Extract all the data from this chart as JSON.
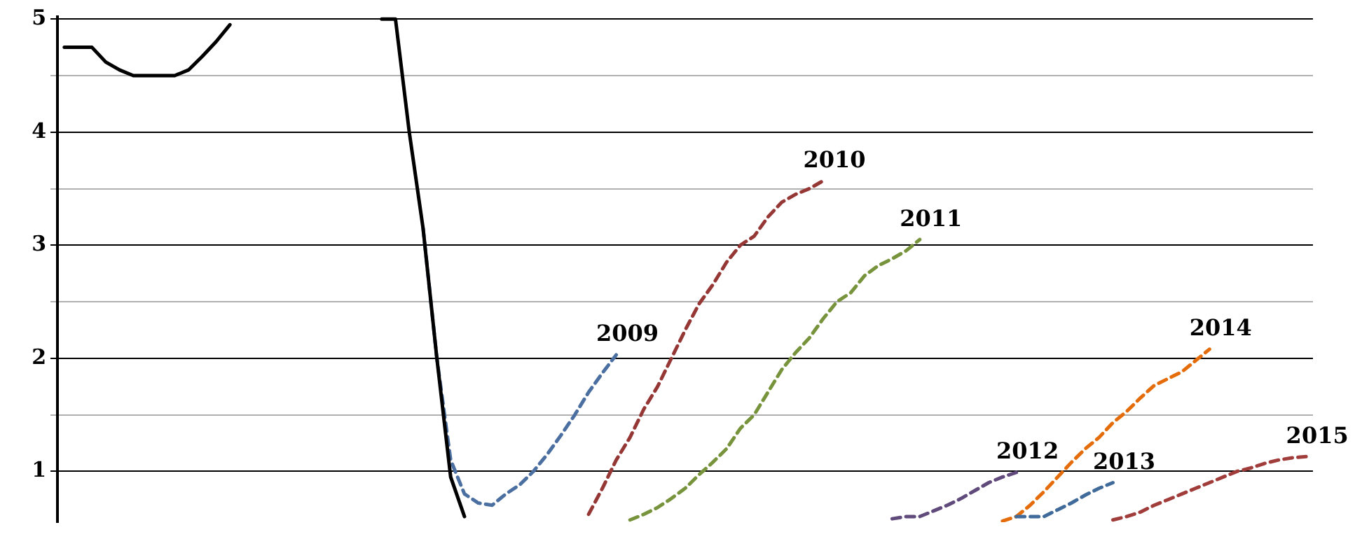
{
  "chart_data": {
    "type": "line",
    "categories": [
      null,
      null,
      null,
      null,
      null,
      null,
      null,
      null,
      null,
      null,
      null,
      null,
      null,
      null,
      null,
      null,
      null,
      null,
      null,
      null,
      null,
      null,
      null,
      null,
      null,
      null,
      null,
      null,
      null,
      null,
      null,
      null,
      null,
      null,
      null,
      null,
      null,
      null,
      null,
      null,
      null,
      null,
      null,
      null,
      null,
      null,
      null,
      null,
      null,
      null,
      null,
      null,
      null,
      null,
      null,
      null,
      null,
      null,
      null,
      null,
      null,
      null,
      null,
      null,
      null,
      null,
      null,
      null,
      null,
      null,
      null,
      null,
      null,
      null,
      null,
      null,
      null,
      null,
      null,
      null,
      null,
      null,
      null,
      null,
      null,
      null,
      null,
      null,
      null,
      null,
      null
    ],
    "series": [
      {
        "color": "#000000",
        "line_style": "solid",
        "values": [
          4.75,
          4.75,
          4.75,
          4.62,
          4.55,
          4.5,
          4.5,
          4.5,
          4.5,
          4.55,
          4.67,
          4.8,
          4.95,
          null,
          null,
          null,
          null,
          null,
          null,
          null,
          null,
          null,
          null,
          5.0,
          5.0,
          4.0,
          3.15,
          2.0,
          0.95,
          0.6,
          null,
          null,
          null,
          null,
          null,
          null,
          null,
          null,
          null,
          null,
          null,
          null,
          null,
          null,
          null,
          null,
          null,
          null,
          null,
          null,
          null,
          null,
          null,
          null,
          null,
          null,
          null,
          null,
          null,
          null,
          null,
          null,
          null,
          null,
          null,
          null,
          null,
          null,
          null,
          null,
          null,
          null,
          null,
          null,
          null,
          null,
          null,
          null,
          null,
          null,
          null,
          null,
          null,
          null,
          null,
          null,
          null,
          null,
          null,
          null,
          null
        ]
      },
      {
        "name": "2009",
        "color": "#4a6fa0",
        "line_style": "dashed",
        "values": [
          null,
          null,
          null,
          null,
          null,
          null,
          null,
          null,
          null,
          null,
          null,
          null,
          null,
          null,
          null,
          null,
          null,
          null,
          null,
          null,
          null,
          null,
          null,
          null,
          null,
          null,
          3.15,
          2.0,
          1.1,
          0.8,
          0.72,
          0.7,
          0.8,
          0.88,
          1.0,
          1.15,
          1.32,
          1.5,
          1.7,
          1.87,
          2.03,
          null,
          null,
          null,
          null,
          null,
          null,
          null,
          null,
          null,
          null,
          null,
          null,
          null,
          null,
          null,
          null,
          null,
          null,
          null,
          null,
          null,
          null,
          null,
          null,
          null,
          null,
          null,
          null,
          null,
          null,
          null,
          null,
          null,
          null,
          null,
          null,
          null,
          null,
          null,
          null,
          null,
          null,
          null,
          null,
          null,
          null,
          null,
          null,
          null,
          null
        ]
      },
      {
        "name": "2010",
        "color": "#953735",
        "line_style": "dashed",
        "values": [
          null,
          null,
          null,
          null,
          null,
          null,
          null,
          null,
          null,
          null,
          null,
          null,
          null,
          null,
          null,
          null,
          null,
          null,
          null,
          null,
          null,
          null,
          null,
          null,
          null,
          null,
          null,
          null,
          null,
          null,
          null,
          null,
          null,
          null,
          null,
          null,
          null,
          null,
          0.62,
          0.85,
          1.1,
          1.3,
          1.55,
          1.75,
          2.0,
          2.25,
          2.48,
          2.65,
          2.85,
          3.0,
          3.08,
          3.25,
          3.38,
          3.45,
          3.5,
          3.57,
          null,
          null,
          null,
          null,
          null,
          null,
          null,
          null,
          null,
          null,
          null,
          null,
          null,
          null,
          null,
          null,
          null,
          null,
          null,
          null,
          null,
          null,
          null,
          null,
          null,
          null,
          null,
          null,
          null,
          null,
          null,
          null,
          null,
          null,
          null
        ]
      },
      {
        "name": "2011",
        "color": "#77933c",
        "line_style": "dashed",
        "values": [
          null,
          null,
          null,
          null,
          null,
          null,
          null,
          null,
          null,
          null,
          null,
          null,
          null,
          null,
          null,
          null,
          null,
          null,
          null,
          null,
          null,
          null,
          null,
          null,
          null,
          null,
          null,
          null,
          null,
          null,
          null,
          null,
          null,
          null,
          null,
          null,
          null,
          null,
          null,
          null,
          null,
          0.57,
          0.62,
          0.68,
          0.76,
          0.85,
          0.97,
          1.08,
          1.2,
          1.38,
          1.5,
          1.7,
          1.9,
          2.05,
          2.18,
          2.35,
          2.5,
          2.58,
          2.73,
          2.82,
          2.88,
          2.95,
          3.05,
          null,
          null,
          null,
          null,
          null,
          null,
          null,
          null,
          null,
          null,
          null,
          null,
          null,
          null,
          null,
          null,
          null,
          null,
          null,
          null,
          null,
          null,
          null,
          null,
          null,
          null,
          null,
          null
        ]
      },
      {
        "name": "2012",
        "color": "#604a7b",
        "line_style": "dashed",
        "values": [
          null,
          null,
          null,
          null,
          null,
          null,
          null,
          null,
          null,
          null,
          null,
          null,
          null,
          null,
          null,
          null,
          null,
          null,
          null,
          null,
          null,
          null,
          null,
          null,
          null,
          null,
          null,
          null,
          null,
          null,
          null,
          null,
          null,
          null,
          null,
          null,
          null,
          null,
          null,
          null,
          null,
          null,
          null,
          null,
          null,
          null,
          null,
          null,
          null,
          null,
          null,
          null,
          null,
          null,
          null,
          null,
          null,
          null,
          null,
          null,
          0.58,
          0.6,
          0.6,
          0.65,
          0.7,
          0.76,
          0.83,
          0.9,
          0.95,
          0.99,
          null,
          null,
          null,
          null,
          null,
          null,
          null,
          null,
          null,
          null,
          null,
          null,
          null,
          null,
          null,
          null,
          null,
          null,
          null,
          null,
          null
        ]
      },
      {
        "name": "2013",
        "color": "#3f6a9a",
        "line_style": "dashed",
        "values": [
          null,
          null,
          null,
          null,
          null,
          null,
          null,
          null,
          null,
          null,
          null,
          null,
          null,
          null,
          null,
          null,
          null,
          null,
          null,
          null,
          null,
          null,
          null,
          null,
          null,
          null,
          null,
          null,
          null,
          null,
          null,
          null,
          null,
          null,
          null,
          null,
          null,
          null,
          null,
          null,
          null,
          null,
          null,
          null,
          null,
          null,
          null,
          null,
          null,
          null,
          null,
          null,
          null,
          null,
          null,
          null,
          null,
          null,
          null,
          null,
          null,
          null,
          null,
          null,
          null,
          null,
          null,
          null,
          null,
          0.6,
          0.6,
          0.6,
          0.66,
          0.72,
          0.79,
          0.85,
          0.9,
          null,
          null,
          null,
          null,
          null,
          null,
          null,
          null,
          null,
          null,
          null,
          null,
          null,
          null
        ]
      },
      {
        "name": "2014",
        "color": "#e46c0a",
        "line_style": "dashed",
        "values": [
          null,
          null,
          null,
          null,
          null,
          null,
          null,
          null,
          null,
          null,
          null,
          null,
          null,
          null,
          null,
          null,
          null,
          null,
          null,
          null,
          null,
          null,
          null,
          null,
          null,
          null,
          null,
          null,
          null,
          null,
          null,
          null,
          null,
          null,
          null,
          null,
          null,
          null,
          null,
          null,
          null,
          null,
          null,
          null,
          null,
          null,
          null,
          null,
          null,
          null,
          null,
          null,
          null,
          null,
          null,
          null,
          null,
          null,
          null,
          null,
          null,
          null,
          null,
          null,
          null,
          null,
          null,
          null,
          0.56,
          0.6,
          0.7,
          0.82,
          0.95,
          1.08,
          1.2,
          1.3,
          1.43,
          1.53,
          1.65,
          1.76,
          1.82,
          1.88,
          1.98,
          2.08,
          null,
          null,
          null,
          null,
          null,
          null,
          null
        ]
      },
      {
        "name": "2015",
        "color": "#a03c3a",
        "line_style": "dashed",
        "values": [
          null,
          null,
          null,
          null,
          null,
          null,
          null,
          null,
          null,
          null,
          null,
          null,
          null,
          null,
          null,
          null,
          null,
          null,
          null,
          null,
          null,
          null,
          null,
          null,
          null,
          null,
          null,
          null,
          null,
          null,
          null,
          null,
          null,
          null,
          null,
          null,
          null,
          null,
          null,
          null,
          null,
          null,
          null,
          null,
          null,
          null,
          null,
          null,
          null,
          null,
          null,
          null,
          null,
          null,
          null,
          null,
          null,
          null,
          null,
          null,
          null,
          null,
          null,
          null,
          null,
          null,
          null,
          null,
          null,
          null,
          null,
          null,
          null,
          null,
          null,
          null,
          0.57,
          0.6,
          0.64,
          0.7,
          0.75,
          0.8,
          0.85,
          0.9,
          0.95,
          1.0,
          1.03,
          1.07,
          1.1,
          1.12,
          1.13
        ]
      }
    ],
    "ylim": [
      0.55,
      5.02
    ],
    "yticks": [
      {
        "value": 1.5,
        "label": null
      },
      {
        "value": 2.5,
        "label": null
      },
      {
        "value": 3.5,
        "label": null
      },
      {
        "value": 4.5,
        "label": null
      },
      1,
      2,
      3,
      4,
      5
    ],
    "grid": true,
    "legend": false,
    "tick_labels": "y",
    "marker": "none"
  }
}
